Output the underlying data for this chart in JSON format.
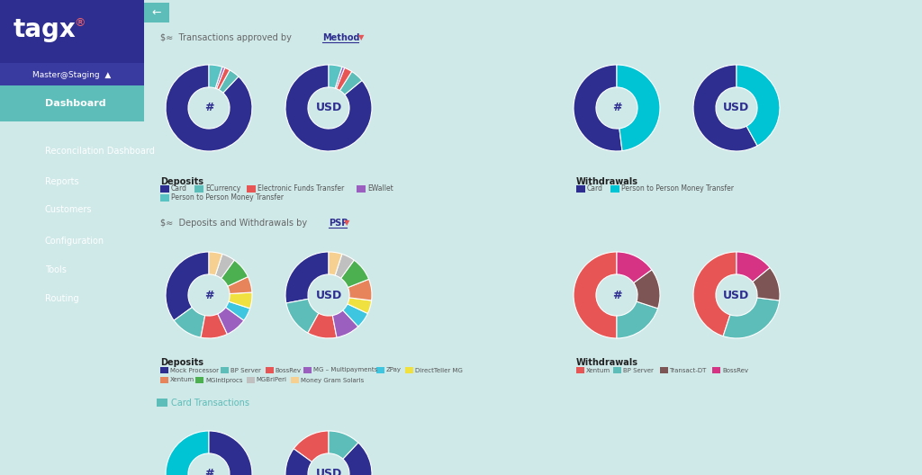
{
  "bg_color": "#cfe8e8",
  "sidebar_color": "#2d2e8f",
  "sidebar_highlight": "#3a3b9e",
  "sidebar_active_color": "#5dbdb8",
  "panel_bg": "#ffffff",
  "dep1_values": [
    88,
    4,
    2,
    1,
    5
  ],
  "dep1_colors": [
    "#2d2e8f",
    "#5dbdb8",
    "#e85555",
    "#9b5fc0",
    "#59c3c3"
  ],
  "dep1_usd_values": [
    86,
    5,
    3,
    1,
    5
  ],
  "dep1_usd_colors": [
    "#2d2e8f",
    "#5dbdb8",
    "#e85555",
    "#9b5fc0",
    "#59c3c3"
  ],
  "wit1_values": [
    52,
    48
  ],
  "wit1_colors": [
    "#2d2e8f",
    "#00c4d4"
  ],
  "wit1_usd_values": [
    58,
    42
  ],
  "wit1_usd_colors": [
    "#2d2e8f",
    "#00c4d4"
  ],
  "dep2_values": [
    35,
    12,
    10,
    8,
    5,
    6,
    6,
    8,
    5,
    5
  ],
  "dep2_colors": [
    "#2d2e8f",
    "#5dbdb8",
    "#e85555",
    "#9b5fc0",
    "#3ec6e0",
    "#f0e040",
    "#e8845c",
    "#4caf50",
    "#c0c0c0",
    "#f5d090"
  ],
  "dep2_usd_values": [
    28,
    14,
    11,
    9,
    6,
    5,
    8,
    9,
    5,
    5
  ],
  "dep2_usd_colors": [
    "#2d2e8f",
    "#5dbdb8",
    "#e85555",
    "#9b5fc0",
    "#3ec6e0",
    "#f0e040",
    "#e8845c",
    "#4caf50",
    "#c0c0c0",
    "#f5d090"
  ],
  "wit2_values": [
    50,
    20,
    15,
    15
  ],
  "wit2_colors": [
    "#e85555",
    "#5dbdb8",
    "#7d5555",
    "#d63384"
  ],
  "wit2_usd_values": [
    45,
    28,
    13,
    14
  ],
  "wit2_usd_colors": [
    "#e85555",
    "#5dbdb8",
    "#7d5555",
    "#d63384"
  ],
  "card3_values": [
    72,
    28
  ],
  "card3_colors": [
    "#00c4d4",
    "#2d2e8f"
  ],
  "card3_usd_values": [
    15,
    73,
    12
  ],
  "card3_usd_colors": [
    "#e85555",
    "#2d2e8f",
    "#5dbdb8"
  ],
  "dep1_legend": [
    [
      "#2d2e8f",
      "Card"
    ],
    [
      "#5dbdb8",
      "ECurrency"
    ],
    [
      "#e85555",
      "Electronic Funds Transfer"
    ],
    [
      "#9b5fc0",
      "EWallet"
    ],
    [
      "#59c3c3",
      "Person to Person Money Transfer"
    ]
  ],
  "wit1_legend": [
    [
      "#2d2e8f",
      "Card"
    ],
    [
      "#00c4d4",
      "Person to Person Money Transfer"
    ]
  ],
  "dep2_legend": [
    [
      "#2d2e8f",
      "Mock Processor"
    ],
    [
      "#5dbdb8",
      "BP Server"
    ],
    [
      "#e85555",
      "BossRev"
    ],
    [
      "#9b5fc0",
      "MG – Multipayments"
    ],
    [
      "#3ec6e0",
      "ZPay"
    ],
    [
      "#f0e040",
      "DirectTeller MG"
    ],
    [
      "#e8845c",
      "Xentum"
    ],
    [
      "#4caf50",
      "MGIntlprocs"
    ],
    [
      "#c0c0c0",
      "MGBriPeri"
    ],
    [
      "#f5d090",
      "Money Gram Solaris"
    ]
  ],
  "wit2_legend": [
    [
      "#e85555",
      "Xentum"
    ],
    [
      "#5dbdb8",
      "BP Server"
    ],
    [
      "#7d5555",
      "Transact-DT"
    ],
    [
      "#d63384",
      "BossRev"
    ]
  ]
}
